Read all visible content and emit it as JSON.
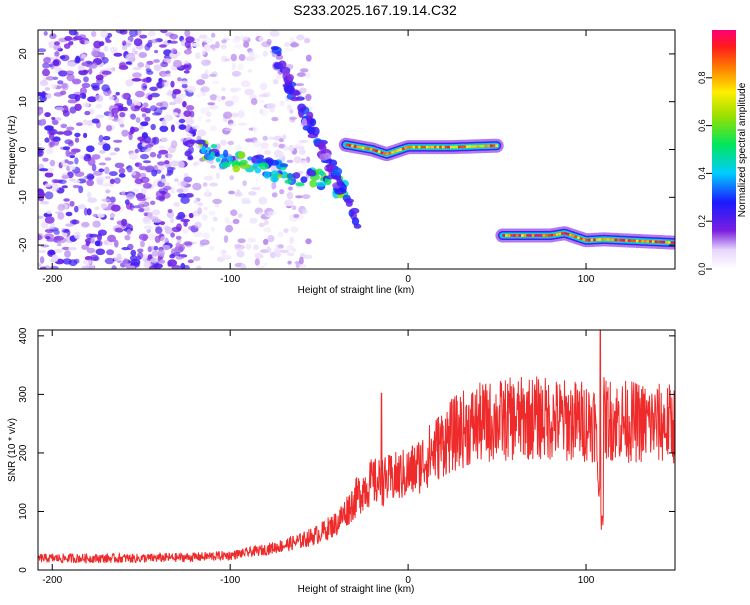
{
  "title": "S233.2025.167.19.14.C32",
  "colors": {
    "spectrogram_base": "#7a1fe0",
    "snr_line": "#ee2a2a",
    "axis": "#000000"
  },
  "chart_data": [
    {
      "type": "heatmap",
      "name": "spectrogram",
      "xlabel": "Height of straight line (km)",
      "ylabel": "Frequency (Hz)",
      "xlim": [
        -208,
        150
      ],
      "ylim": [
        -25,
        25
      ],
      "x_ticks": [
        "-200",
        "-100",
        "0",
        "100"
      ],
      "x_tick_values": [
        -200,
        -100,
        0,
        100
      ],
      "y_ticks": [
        "20",
        "10",
        "0",
        "-10",
        "-20"
      ],
      "y_tick_values": [
        20,
        10,
        0,
        -10,
        -20
      ],
      "colorbar": {
        "label": "Normalized spectral amplitude",
        "range": [
          0,
          1
        ],
        "ticks": [
          "0.0",
          "0.2",
          "0.4",
          "0.6",
          "0.8"
        ],
        "tick_values": [
          0.0,
          0.2,
          0.4,
          0.6,
          0.8
        ]
      },
      "features": [
        {
          "kind": "noise",
          "x_range": [
            -208,
            -120
          ],
          "y_range": [
            -25,
            25
          ],
          "amplitude": 0.2
        },
        {
          "kind": "noise",
          "x_range": [
            -120,
            -55
          ],
          "y_range": [
            -25,
            25
          ],
          "amplitude": 0.1
        },
        {
          "kind": "diagonal_band",
          "x": [
            -120,
            -35
          ],
          "y": [
            0,
            -8
          ],
          "amplitude": 0.5
        },
        {
          "kind": "diagonal_band",
          "x": [
            -75,
            -28
          ],
          "y": [
            20,
            -15
          ],
          "amplitude": 0.25
        },
        {
          "kind": "tone",
          "x": [
            -35,
            -20,
            -12,
            0,
            25,
            50
          ],
          "y": [
            1,
            0,
            -1,
            0.5,
            0.5,
            0.8
          ],
          "amplitude": 0.9
        },
        {
          "kind": "tone",
          "x": [
            53,
            80,
            88,
            100,
            110,
            150
          ],
          "y": [
            -18,
            -18,
            -17.5,
            -19,
            -18.8,
            -19.5
          ],
          "amplitude": 0.95
        }
      ]
    },
    {
      "type": "line",
      "name": "snr",
      "xlabel": "Height of straight line (km)",
      "ylabel": "SNR (10 * v/v)",
      "xlim": [
        -208,
        150
      ],
      "ylim": [
        0,
        410
      ],
      "x_ticks": [
        "-200",
        "-100",
        "0",
        "100"
      ],
      "x_tick_values": [
        -200,
        -100,
        0,
        100
      ],
      "y_ticks": [
        "0",
        "100",
        "200",
        "300",
        "400"
      ],
      "y_tick_values": [
        0,
        100,
        200,
        300,
        400
      ],
      "series": [
        {
          "x": [
            -208,
            -180,
            -150,
            -120,
            -100,
            -80,
            -70,
            -60,
            -50,
            -40,
            -35,
            -30,
            -25,
            -20,
            -15,
            -10,
            -5,
            0,
            5,
            10,
            15,
            20,
            25,
            30,
            40,
            50,
            60,
            70,
            80,
            90,
            100,
            105,
            108,
            110,
            120,
            130,
            140,
            150
          ],
          "y": [
            20,
            20,
            20,
            22,
            25,
            35,
            42,
            50,
            62,
            80,
            100,
            120,
            140,
            150,
            150,
            155,
            160,
            165,
            175,
            190,
            205,
            220,
            230,
            240,
            250,
            255,
            258,
            260,
            258,
            255,
            255,
            255,
            100,
            258,
            255,
            252,
            250,
            250
          ],
          "spikes": [
            {
              "x": -15,
              "y": 302
            },
            {
              "x": 108,
              "y": 410
            },
            {
              "x": 109,
              "y": 92
            }
          ]
        }
      ]
    }
  ]
}
